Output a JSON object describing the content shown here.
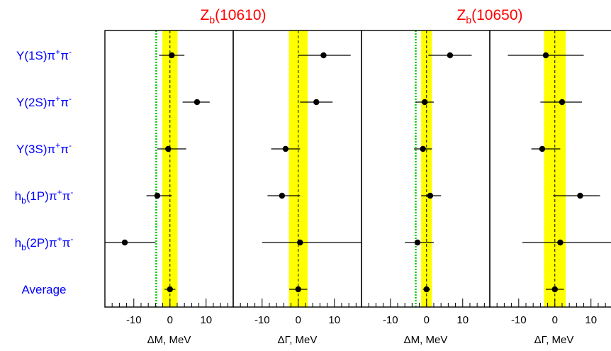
{
  "chart_data": {
    "type": "scatter",
    "group_titles": [
      {
        "base": "Z",
        "sub": "b",
        "rest": "(10610)",
        "color": "#ff0000"
      },
      {
        "base": "Z",
        "sub": "b",
        "rest": "(10650)",
        "color": "#ff0000"
      }
    ],
    "categories": [
      {
        "parts": [
          [
            "Υ(1S)π",
            ""
          ],
          [
            "+",
            "sup"
          ],
          [
            "π",
            ""
          ],
          [
            "-",
            "sup"
          ]
        ]
      },
      {
        "parts": [
          [
            "Υ(2S)π",
            ""
          ],
          [
            "+",
            "sup"
          ],
          [
            "π",
            ""
          ],
          [
            "-",
            "sup"
          ]
        ]
      },
      {
        "parts": [
          [
            "Υ(3S)π",
            ""
          ],
          [
            "+",
            "sup"
          ],
          [
            "π",
            ""
          ],
          [
            "-",
            "sup"
          ]
        ]
      },
      {
        "parts": [
          [
            "h",
            ""
          ],
          [
            "b",
            "sub"
          ],
          [
            "(1P)π",
            ""
          ],
          [
            "+",
            "sup"
          ],
          [
            "π",
            ""
          ],
          [
            "-",
            "sup"
          ]
        ]
      },
      {
        "parts": [
          [
            "h",
            ""
          ],
          [
            "b",
            "sub"
          ],
          [
            "(2P)π",
            ""
          ],
          [
            "+",
            "sup"
          ],
          [
            "π",
            ""
          ],
          [
            "-",
            "sup"
          ]
        ]
      },
      {
        "parts": [
          [
            "Average",
            ""
          ]
        ]
      }
    ],
    "category_color": "#0000ff",
    "marker_color": "#000000",
    "band_color": "#ffff00",
    "green_line_color": "#00cc00",
    "panels": [
      {
        "xlabel": "ΔM, MeV",
        "xlim": [
          -18,
          17.5
        ],
        "ticks": [
          -10,
          0,
          10
        ],
        "band": [
          -2.1,
          2.1
        ],
        "green_line": -3.8,
        "points": [
          {
            "x": 0.5,
            "lo": -3.0,
            "hi": 4.0
          },
          {
            "x": 7.5,
            "lo": 3.5,
            "hi": 11.0
          },
          {
            "x": -0.5,
            "lo": -3.5,
            "hi": 4.5
          },
          {
            "x": -3.5,
            "lo": -6.5,
            "hi": 0.5
          },
          {
            "x": -12.5,
            "lo": -18,
            "hi": -4.0
          },
          {
            "x": 0.0,
            "lo": -1.5,
            "hi": 1.5
          }
        ]
      },
      {
        "xlabel": "ΔΓ, MeV",
        "xlim": [
          -18,
          17.5
        ],
        "ticks": [
          -10,
          0,
          10
        ],
        "band": [
          -2.6,
          2.6
        ],
        "green_line": null,
        "points": [
          {
            "x": 7.0,
            "lo": 0.0,
            "hi": 14.5
          },
          {
            "x": 5.0,
            "lo": 0.5,
            "hi": 9.5
          },
          {
            "x": -3.5,
            "lo": -7.5,
            "hi": 0.5
          },
          {
            "x": -4.5,
            "lo": -8.5,
            "hi": 0.5
          },
          {
            "x": 0.5,
            "lo": -10.0,
            "hi": 17.5
          },
          {
            "x": 0.0,
            "lo": -2.5,
            "hi": 2.5
          }
        ]
      },
      {
        "xlabel": "ΔM, MeV",
        "xlim": [
          -18,
          17.5
        ],
        "ticks": [
          -10,
          0,
          10
        ],
        "band": [
          -1.5,
          1.5
        ],
        "green_line": -3.0,
        "points": [
          {
            "x": 6.5,
            "lo": 0.5,
            "hi": 12.5
          },
          {
            "x": -0.5,
            "lo": -3.0,
            "hi": 2.0
          },
          {
            "x": -1.0,
            "lo": -3.5,
            "hi": 1.5
          },
          {
            "x": 1.0,
            "lo": -1.5,
            "hi": 4.0
          },
          {
            "x": -2.5,
            "lo": -6.0,
            "hi": 2.0
          },
          {
            "x": 0.0,
            "lo": -1.0,
            "hi": 1.0
          }
        ]
      },
      {
        "xlabel": "ΔΓ, MeV",
        "xlim": [
          -18,
          17.5
        ],
        "ticks": [
          -10,
          0,
          10
        ],
        "band": [
          -3.0,
          3.0
        ],
        "green_line": null,
        "points": [
          {
            "x": -2.5,
            "lo": -13.0,
            "hi": 8.0
          },
          {
            "x": 2.0,
            "lo": -4.0,
            "hi": 7.5
          },
          {
            "x": -3.5,
            "lo": -6.5,
            "hi": 1.5
          },
          {
            "x": 7.0,
            "lo": -0.5,
            "hi": 12.5
          },
          {
            "x": 1.5,
            "lo": -9.0,
            "hi": 17.5
          },
          {
            "x": 0.0,
            "lo": -2.5,
            "hi": 2.5
          }
        ]
      }
    ]
  }
}
